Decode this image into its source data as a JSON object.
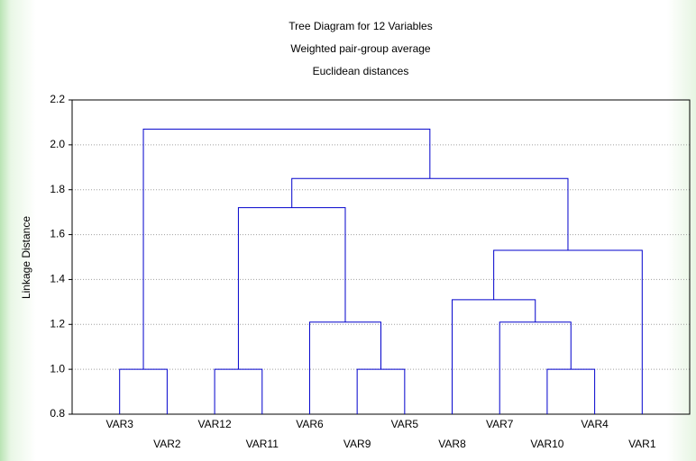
{
  "chart_data": {
    "type": "dendrogram",
    "title": "Tree Diagram for 12 Variables",
    "subtitle": "Weighted pair-group average",
    "subtitle2": "Euclidean distances",
    "ylabel": "Linkage Distance",
    "categories": [
      "VAR3",
      "VAR2",
      "VAR12",
      "VAR11",
      "VAR6",
      "VAR9",
      "VAR5",
      "VAR8",
      "VAR7",
      "VAR10",
      "VAR4",
      "VAR1"
    ],
    "merges": [
      {
        "left": 0,
        "right": 1,
        "height": 1.0
      },
      {
        "left": 2,
        "right": 3,
        "height": 1.0
      },
      {
        "left": 5,
        "right": 6,
        "height": 1.0
      },
      {
        "left": 9,
        "right": 10,
        "height": 1.0
      },
      {
        "left": 4,
        "right": 14,
        "height": 1.21
      },
      {
        "left": 8,
        "right": 15,
        "height": 1.21
      },
      {
        "left": 7,
        "right": 17,
        "height": 1.31
      },
      {
        "left": 18,
        "right": 11,
        "height": 1.53
      },
      {
        "left": 13,
        "right": 16,
        "height": 1.72
      },
      {
        "left": 20,
        "right": 19,
        "height": 1.85
      },
      {
        "left": 12,
        "right": 21,
        "height": 2.07
      }
    ],
    "color": "#0000cc",
    "ylim": [
      0.8,
      2.2
    ],
    "yticks": [
      0.8,
      {
        "value": 1,
        "label": "1.0"
      },
      1.2,
      1.4,
      1.6,
      1.8,
      {
        "value": 2,
        "label": "2.0"
      },
      2.2
    ],
    "grid": true
  }
}
